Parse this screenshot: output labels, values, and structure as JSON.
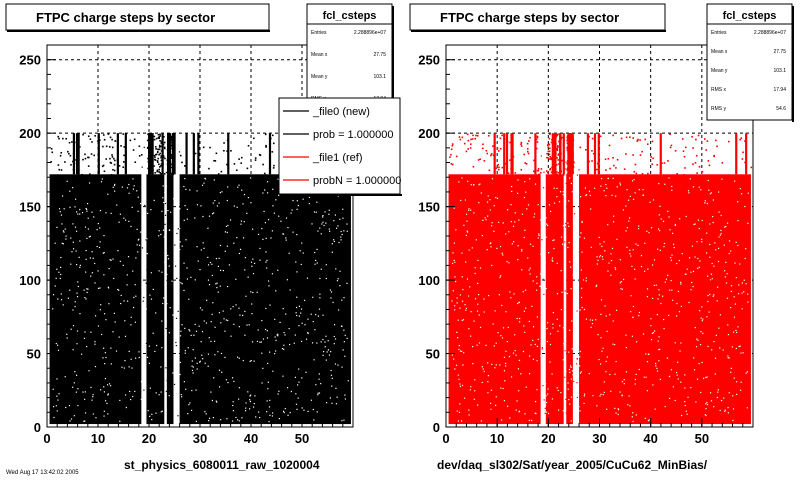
{
  "chart_data": [
    {
      "type": "scatter",
      "title": "FTPC charge steps by sector",
      "xlabel": "st_physics_6080011_raw_1020004",
      "ylabel": "",
      "xlim": [
        0,
        60
      ],
      "ylim": [
        0,
        260
      ],
      "x_ticks": [
        "0",
        "10",
        "20",
        "30",
        "40",
        "50"
      ],
      "y_ticks": [
        "0",
        "50",
        "100",
        "150",
        "200",
        "250"
      ],
      "marker_color": "#000000",
      "grid": true,
      "empty_sector_bands": [
        [
          18.5,
          19.5
        ],
        [
          23.0,
          23.5
        ],
        [
          24.8,
          26.0
        ]
      ],
      "series": [
        {
          "fill_levels": {
            "dense_top": 172,
            "sparse_top": 200
          }
        }
      ],
      "stats": {
        "name": "fcl_csteps",
        "rows": [
          {
            "label": "Entries",
            "value": "2.288896e+07"
          },
          {
            "label": "Mean x",
            "value": "27.75"
          },
          {
            "label": "Mean y",
            "value": "103.1"
          },
          {
            "label": "RMS x",
            "value": "17.94"
          }
        ]
      },
      "legend": {
        "placement": "top-right",
        "entries": [
          {
            "label": "_file0 (new)",
            "color": "#000000"
          },
          {
            "label": "prob = 1.000000",
            "color": "#000000"
          },
          {
            "label": "_file1 (ref)",
            "color": "#ff0000"
          },
          {
            "label": "probN = 1.000000",
            "color": "#ff0000"
          }
        ]
      },
      "bottom_left_note": "Wed Aug 17 13:42:02 2005"
    },
    {
      "type": "scatter",
      "title": "FTPC charge steps by sector",
      "xlabel": "dev/daq_sl302/Sat/year_2005/CuCu62_MinBias/",
      "ylabel": "",
      "xlim": [
        0,
        60
      ],
      "ylim": [
        0,
        260
      ],
      "x_ticks": [
        "0",
        "10",
        "20",
        "30",
        "40",
        "50"
      ],
      "y_ticks": [
        "0",
        "50",
        "100",
        "150",
        "200",
        "250"
      ],
      "marker_color": "#ff0000",
      "grid": true,
      "empty_sector_bands": [
        [
          18.5,
          19.5
        ],
        [
          23.0,
          23.5
        ],
        [
          24.8,
          26.0
        ]
      ],
      "series": [
        {
          "fill_levels": {
            "dense_top": 172,
            "sparse_top": 200
          }
        }
      ],
      "stats": {
        "name": "fcl_csteps",
        "rows": [
          {
            "label": "Entries",
            "value": "2.288896e+07"
          },
          {
            "label": "Mean x",
            "value": "27.75"
          },
          {
            "label": "Mean y",
            "value": "103.1"
          },
          {
            "label": "RMS x",
            "value": "17.94"
          },
          {
            "label": "RMS y",
            "value": "54.6"
          }
        ]
      }
    }
  ]
}
